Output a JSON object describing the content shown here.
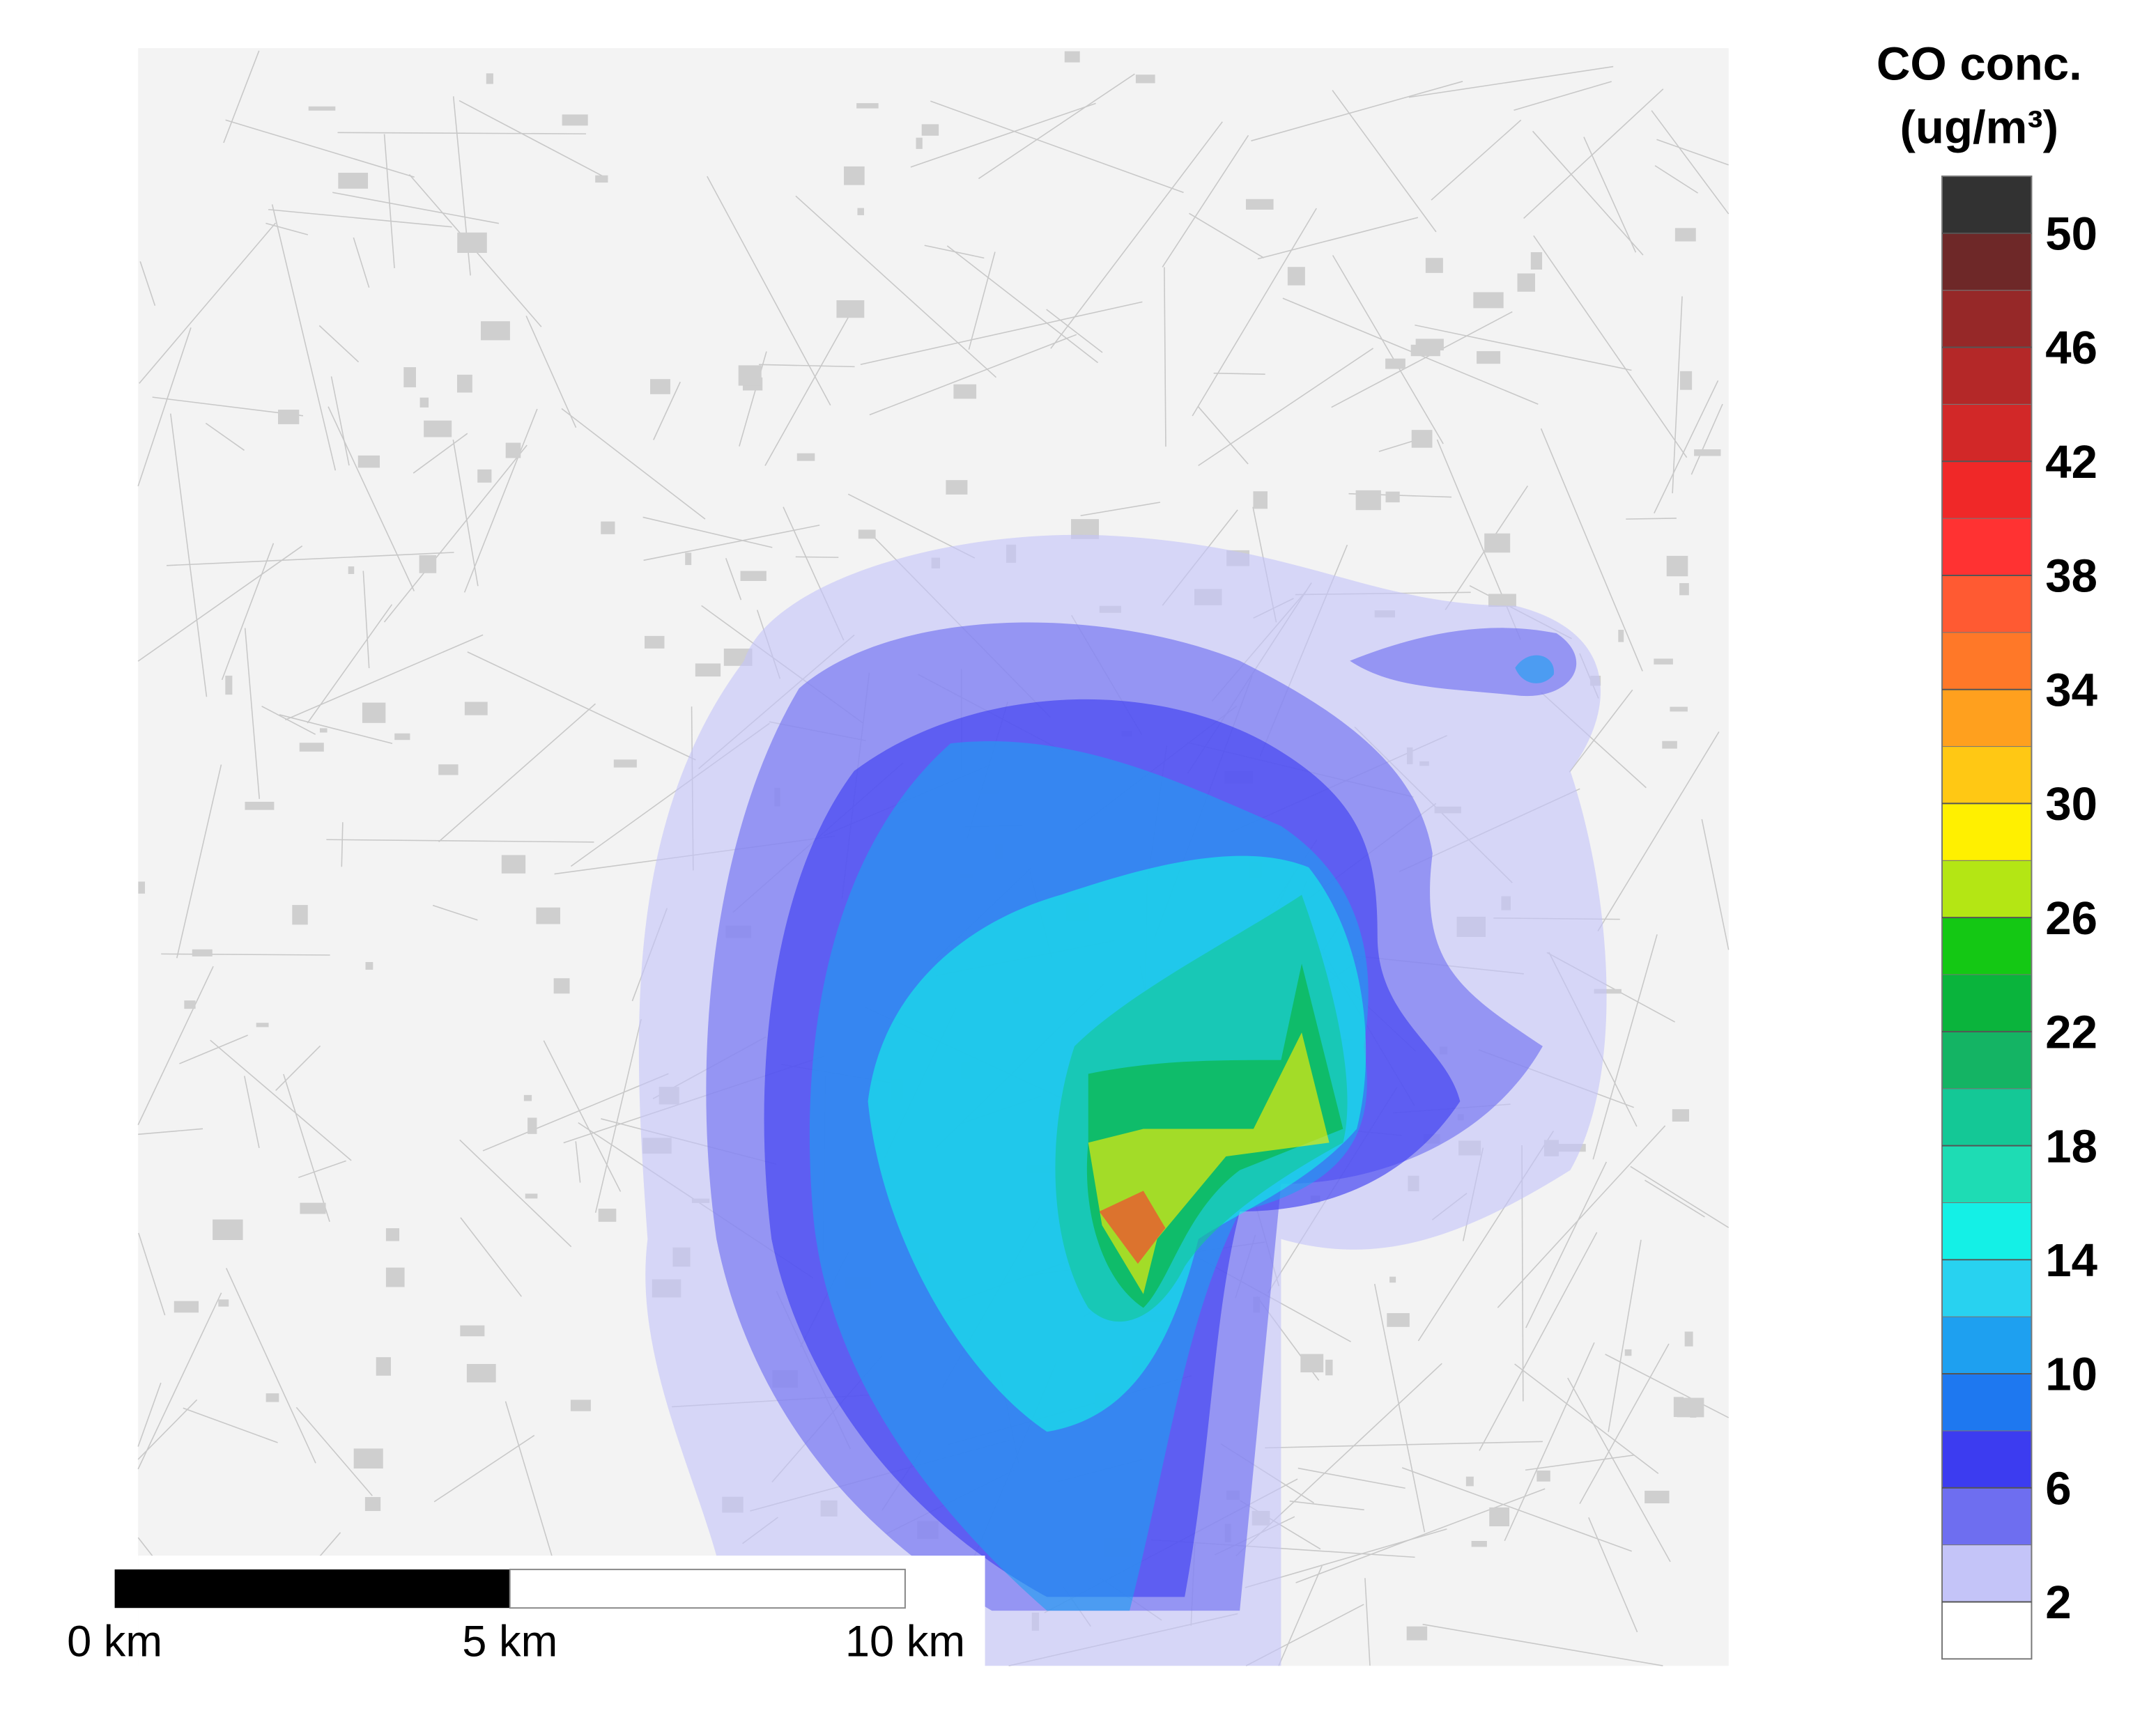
{
  "title": "CO conc.",
  "unit": "(ug/m³)",
  "colorbar": {
    "levels": [
      0,
      2,
      4,
      6,
      8,
      10,
      12,
      14,
      16,
      18,
      20,
      22,
      24,
      26,
      28,
      30,
      32,
      34,
      36,
      38,
      40,
      42,
      44,
      46,
      48,
      50,
      52
    ],
    "colors": [
      "#ffffff",
      "#c4c4f8",
      "#6e6ef0",
      "#3c3cf0",
      "#1e78f0",
      "#1ea0f0",
      "#28d2f0",
      "#14f0e6",
      "#1edcb4",
      "#14c896",
      "#14b464",
      "#0ab43c",
      "#14c814",
      "#b4e614",
      "#fff000",
      "#ffc814",
      "#ffa01e",
      "#ff7828",
      "#ff5a32",
      "#ff3232",
      "#f02828",
      "#d22828",
      "#b42828",
      "#962828",
      "#6e2828",
      "#323232"
    ],
    "ticks": [
      2,
      6,
      10,
      14,
      18,
      22,
      26,
      30,
      34,
      38,
      42,
      46,
      50
    ]
  },
  "scale_bar": {
    "labels": [
      "0 km",
      "5 km",
      "10 km"
    ]
  }
}
